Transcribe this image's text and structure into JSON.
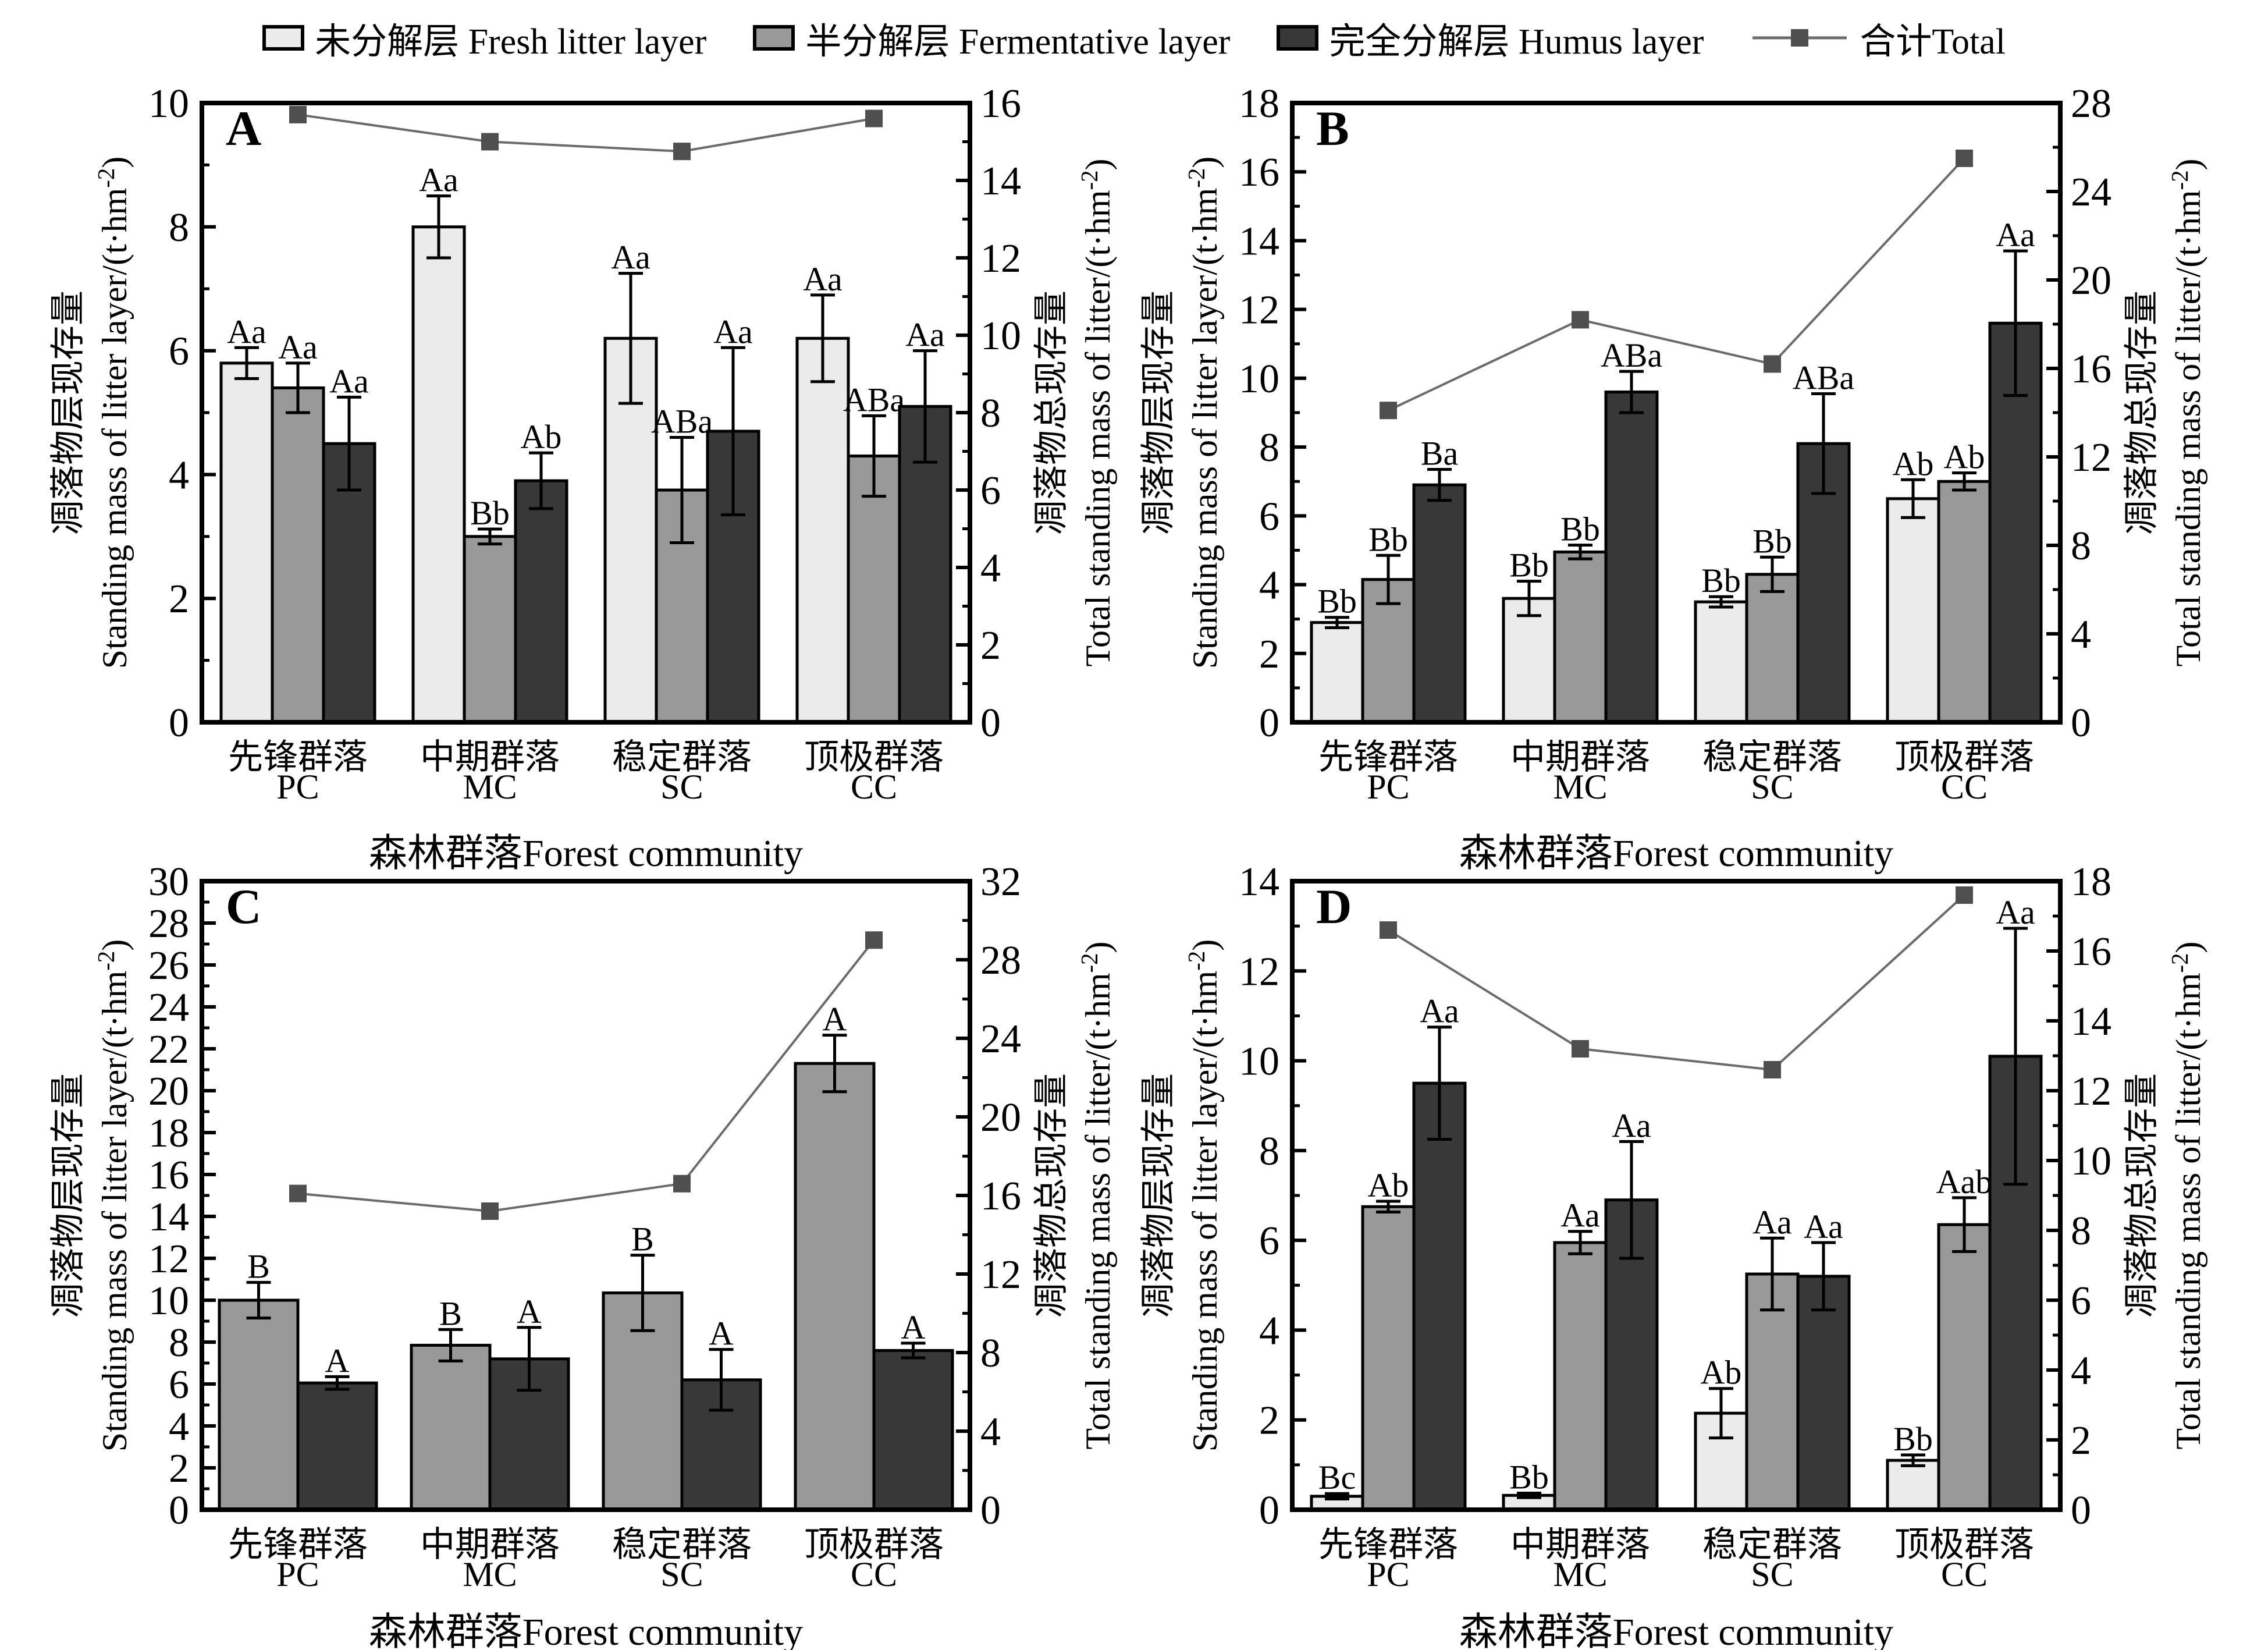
{
  "legend": {
    "items": [
      {
        "key": "fresh",
        "label": "未分解层 Fresh litter layer",
        "swatch": "#ebebeb"
      },
      {
        "key": "ferm",
        "label": "半分解层 Fermentative layer",
        "swatch": "#999999"
      },
      {
        "key": "humus",
        "label": "完全分解层 Humus layer",
        "swatch": "#383838"
      },
      {
        "key": "total",
        "label": "合计Total",
        "marker_color": "#4f4f4f",
        "line_color": "#6b6b6b"
      }
    ]
  },
  "axis_labels": {
    "left_zh": "凋落物层现存量",
    "left_en": "Standing mass of litter layer/(t·hm⁻²)",
    "right_zh": "凋落物总现存量",
    "right_en": "Total standing mass of litter/(t·hm⁻²)",
    "x_title": "森林群落Forest community"
  },
  "categories": [
    {
      "zh": "先锋群落",
      "code": "PC"
    },
    {
      "zh": "中期群落",
      "code": "MC"
    },
    {
      "zh": "稳定群落",
      "code": "SC"
    },
    {
      "zh": "顶极群落",
      "code": "CC"
    }
  ],
  "chart_data": [
    {
      "type": "bar+line",
      "panel": "A",
      "left_axis": {
        "min": 0,
        "max": 10,
        "step": 2
      },
      "right_axis": {
        "min": 0,
        "max": 16,
        "step": 2
      },
      "bars": [
        {
          "series": "fresh",
          "values": [
            5.8,
            8.0,
            6.2,
            6.2
          ],
          "errors": [
            0.25,
            0.5,
            1.05,
            0.7
          ],
          "sig": [
            "Aa",
            "Aa",
            "Aa",
            "Aa"
          ]
        },
        {
          "series": "ferm",
          "values": [
            5.4,
            3.0,
            3.75,
            4.3
          ],
          "errors": [
            0.4,
            0.12,
            0.85,
            0.65
          ],
          "sig": [
            "Aa",
            "Bb",
            "ABa",
            "ABa"
          ]
        },
        {
          "series": "humus",
          "values": [
            4.5,
            3.9,
            4.7,
            5.1
          ],
          "errors": [
            0.75,
            0.45,
            1.35,
            0.9
          ],
          "sig": [
            "Aa",
            "Ab",
            "Aa",
            "Aa"
          ]
        }
      ],
      "total_right_axis": [
        15.7,
        15.0,
        14.75,
        15.6
      ]
    },
    {
      "type": "bar+line",
      "panel": "B",
      "left_axis": {
        "min": 0,
        "max": 18,
        "step": 2
      },
      "right_axis": {
        "min": 0,
        "max": 28,
        "step": 4
      },
      "bars": [
        {
          "series": "fresh",
          "values": [
            2.9,
            3.6,
            3.5,
            6.5
          ],
          "errors": [
            0.15,
            0.5,
            0.15,
            0.55
          ],
          "sig": [
            "Bb",
            "Bb",
            "Bb",
            "Ab"
          ]
        },
        {
          "series": "ferm",
          "values": [
            4.15,
            4.95,
            4.3,
            7.0
          ],
          "errors": [
            0.7,
            0.2,
            0.5,
            0.25
          ],
          "sig": [
            "Bb",
            "Bb",
            "Bb",
            "Ab"
          ]
        },
        {
          "series": "humus",
          "values": [
            6.9,
            9.6,
            8.1,
            11.6
          ],
          "errors": [
            0.45,
            0.6,
            1.45,
            2.1
          ],
          "sig": [
            "Ba",
            "ABa",
            "ABa",
            "Aa"
          ]
        }
      ],
      "total_right_axis": [
        14.1,
        18.2,
        16.2,
        25.5
      ]
    },
    {
      "type": "bar+line",
      "panel": "C",
      "left_axis": {
        "min": 0,
        "max": 30,
        "step": 2
      },
      "right_axis": {
        "min": 0,
        "max": 32,
        "step": 4
      },
      "bars": [
        {
          "series": "ferm",
          "values": [
            10.0,
            7.85,
            10.35,
            21.3
          ],
          "errors": [
            0.85,
            0.75,
            1.8,
            1.35
          ],
          "sig": [
            "B",
            "B",
            "B",
            "A"
          ]
        },
        {
          "series": "humus",
          "values": [
            6.05,
            7.2,
            6.2,
            7.6
          ],
          "errors": [
            0.3,
            1.5,
            1.45,
            0.35
          ],
          "sig": [
            "A",
            "A",
            "A",
            "A"
          ]
        }
      ],
      "total_right_axis": [
        16.1,
        15.2,
        16.6,
        29.0
      ]
    },
    {
      "type": "bar+line",
      "panel": "D",
      "left_axis": {
        "min": 0,
        "max": 14,
        "step": 2
      },
      "right_axis": {
        "min": 0,
        "max": 18,
        "step": 2
      },
      "bars": [
        {
          "series": "fresh",
          "values": [
            0.3,
            0.32,
            2.15,
            1.1
          ],
          "errors": [
            0.06,
            0.05,
            0.55,
            0.12
          ],
          "sig": [
            "Bc",
            "Bb",
            "Ab",
            "Bb"
          ]
        },
        {
          "series": "ferm",
          "values": [
            6.75,
            5.95,
            5.25,
            6.35
          ],
          "errors": [
            0.12,
            0.25,
            0.8,
            0.6
          ],
          "sig": [
            "Ab",
            "Aa",
            "Aa",
            "Aab"
          ]
        },
        {
          "series": "humus",
          "values": [
            9.5,
            6.9,
            5.2,
            10.1
          ],
          "errors": [
            1.25,
            1.3,
            0.75,
            2.85
          ],
          "sig": [
            "Aa",
            "Aa",
            "Aa",
            "Aa"
          ]
        }
      ],
      "total_right_axis": [
        16.6,
        13.2,
        12.6,
        17.6
      ]
    }
  ]
}
